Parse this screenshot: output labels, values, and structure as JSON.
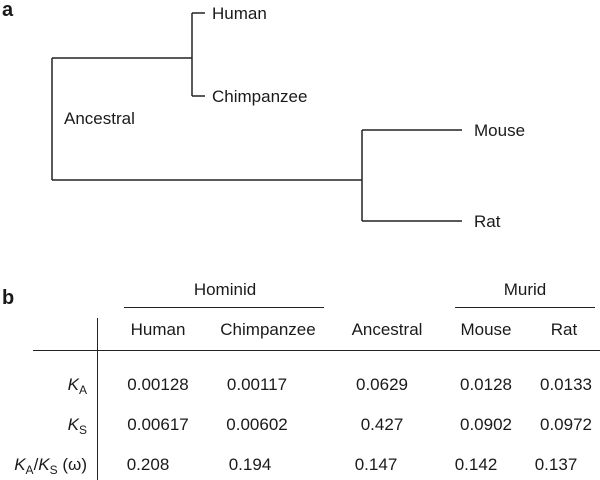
{
  "panel_a": {
    "label": "a",
    "tree": {
      "root": "Ancestral",
      "clade_1": [
        "Human",
        "Chimpanzee"
      ],
      "clade_2": [
        "Mouse",
        "Rat"
      ]
    }
  },
  "panel_b": {
    "label": "b",
    "groups": {
      "hominid": "Hominid",
      "murid": "Murid"
    },
    "columns": [
      "Human",
      "Chimpanzee",
      "Ancestral",
      "Mouse",
      "Rat"
    ],
    "rows": [
      {
        "var": "K",
        "sub": "A",
        "tail": "",
        "values": [
          "0.00128",
          "0.00117",
          "0.0629",
          "0.0128",
          "0.0133"
        ]
      },
      {
        "var": "K",
        "sub": "S",
        "tail": "",
        "values": [
          "0.00617",
          "0.00602",
          "0.427",
          "0.0902",
          "0.0972"
        ]
      },
      {
        "var": "K",
        "sub": "A",
        "var2": "K",
        "sub2": "S",
        "omega": "(ω)",
        "values": [
          "0.208",
          "0.194",
          "0.147",
          "0.142",
          "0.137"
        ]
      }
    ]
  }
}
